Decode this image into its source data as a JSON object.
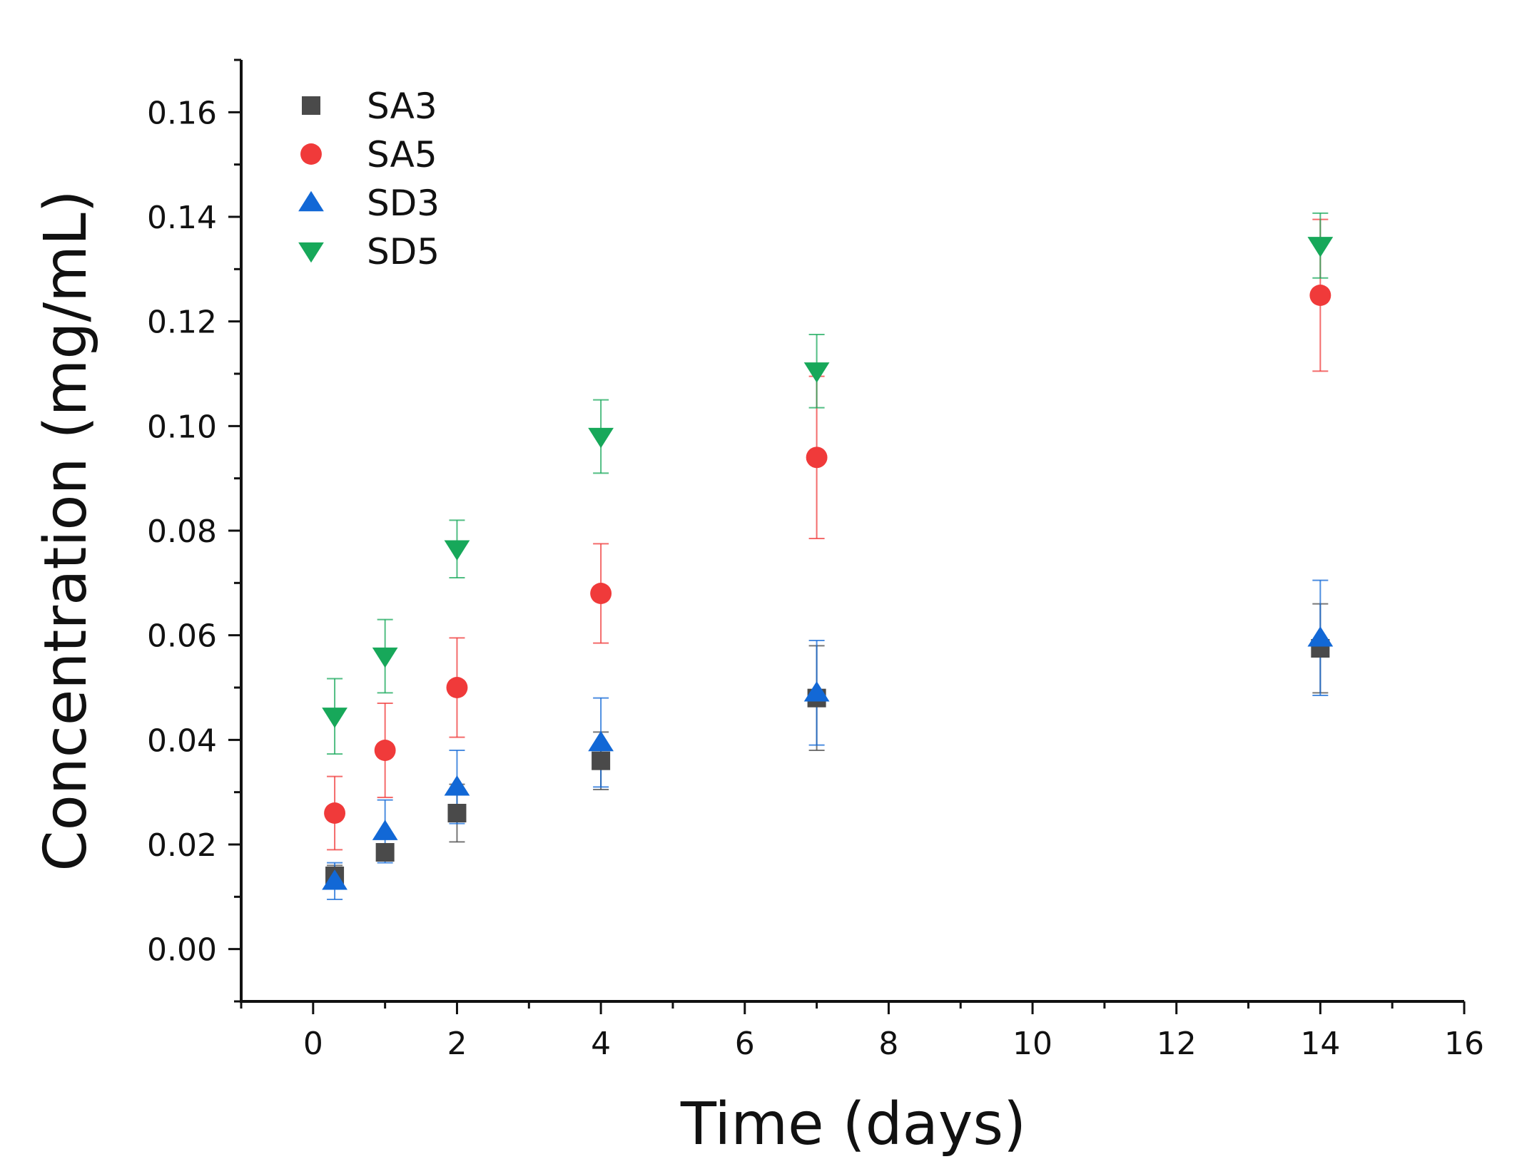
{
  "chart_data": {
    "type": "scatter",
    "xlabel": "Time (days)",
    "ylabel": "Concentration (mg/mL)",
    "xlim": [
      -1,
      16
    ],
    "ylim": [
      -0.01,
      0.17
    ],
    "x_ticks": [
      0,
      2,
      4,
      6,
      8,
      10,
      12,
      14,
      16
    ],
    "x_tick_labels": [
      "0",
      "2",
      "4",
      "6",
      "8",
      "10",
      "12",
      "14",
      "16"
    ],
    "y_ticks": [
      0.0,
      0.02,
      0.04,
      0.06,
      0.08,
      0.1,
      0.12,
      0.14,
      0.16
    ],
    "y_tick_labels": [
      "0.00",
      "0.02",
      "0.04",
      "0.06",
      "0.08",
      "0.10",
      "0.12",
      "0.14",
      "0.16"
    ],
    "grid": false,
    "legend_position": "top-left",
    "series": [
      {
        "name": "SA3",
        "marker": "square",
        "color": "#4a4a4a",
        "x": [
          0.3,
          1,
          2,
          4,
          7,
          14
        ],
        "y": [
          0.014,
          0.0185,
          0.026,
          0.036,
          0.048,
          0.0575
        ],
        "err": [
          0.002,
          0.001,
          0.0055,
          0.0055,
          0.01,
          0.0085
        ]
      },
      {
        "name": "SA5",
        "marker": "circle",
        "color": "#f03a3a",
        "x": [
          0.3,
          1,
          2,
          4,
          7,
          14
        ],
        "y": [
          0.026,
          0.038,
          0.05,
          0.068,
          0.094,
          0.125
        ],
        "err": [
          0.007,
          0.009,
          0.0095,
          0.0095,
          0.0155,
          0.0145
        ]
      },
      {
        "name": "SD3",
        "marker": "triangle-up",
        "color": "#1268d6",
        "x": [
          0.3,
          1,
          2,
          4,
          7,
          14
        ],
        "y": [
          0.013,
          0.0225,
          0.031,
          0.0395,
          0.049,
          0.0595
        ],
        "err": [
          0.0035,
          0.006,
          0.007,
          0.0085,
          0.01,
          0.011
        ]
      },
      {
        "name": "SD5",
        "marker": "triangle-down",
        "color": "#17a85a",
        "x": [
          0.3,
          1,
          2,
          4,
          7,
          14
        ],
        "y": [
          0.0445,
          0.056,
          0.0765,
          0.098,
          0.1105,
          0.1345
        ],
        "err": [
          0.0072,
          0.007,
          0.0055,
          0.007,
          0.007,
          0.0062
        ]
      }
    ]
  }
}
